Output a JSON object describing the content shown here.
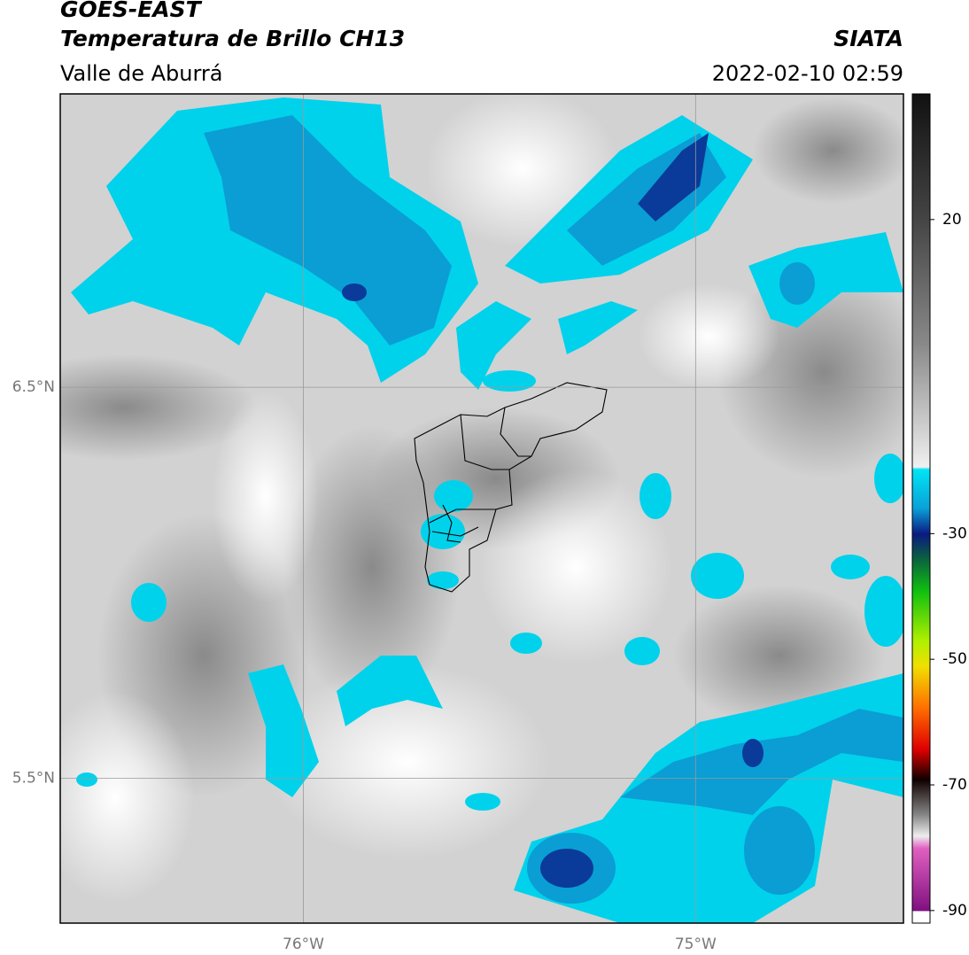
{
  "header": {
    "title": "GOES-EAST",
    "subtitle": "Temperatura de Brillo CH13",
    "region": "Valle de Aburrá",
    "source": "SIATA",
    "datetime": "2022-02-10 02:59"
  },
  "map": {
    "xlim": [
      -76.62,
      -74.47
    ],
    "ylim": [
      5.13,
      7.25
    ],
    "xticks": [
      {
        "value": -76,
        "label": "76°W"
      },
      {
        "value": -75,
        "label": "75°W"
      }
    ],
    "yticks": [
      {
        "value": 6.5,
        "label": "6.5°N"
      },
      {
        "value": 5.5,
        "label": "5.5°N"
      }
    ]
  },
  "colorbar": {
    "lim": [
      -92,
      40
    ],
    "ticks": [
      20,
      -30,
      -50,
      -70,
      -90
    ]
  }
}
